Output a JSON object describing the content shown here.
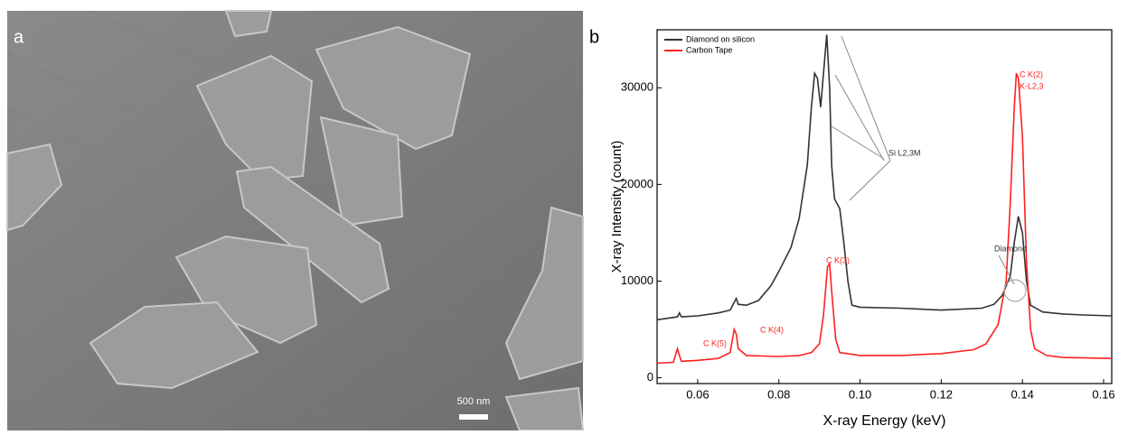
{
  "image": {
    "panel_label": "a",
    "scale_bar_label": "500 nm"
  },
  "chart_data": {
    "type": "line",
    "panel_label": "b",
    "x_label": "X-ray Energy (keV)",
    "y_label": "X-ray Intensity (count)",
    "xlim": [
      0.05,
      0.162
    ],
    "xticks": [
      0.06,
      0.08,
      {
        "value": 0.1,
        "label": "0.10"
      },
      0.12,
      0.14,
      0.16
    ],
    "ylim": [
      -600,
      36000
    ],
    "yticks": [
      0,
      10000,
      20000,
      30000
    ],
    "legend": "upper left",
    "series": [
      {
        "name": "Diamond on silicon",
        "color": "#333333",
        "x": [
          0.05,
          0.055,
          0.0555,
          0.056,
          0.06,
          0.065,
          0.068,
          0.069,
          0.0695,
          0.07,
          0.072,
          0.075,
          0.078,
          0.08,
          0.083,
          0.085,
          0.087,
          0.088,
          0.0888,
          0.0895,
          0.0903,
          0.0908,
          0.0918,
          0.0925,
          0.093,
          0.0937,
          0.095,
          0.096,
          0.097,
          0.098,
          0.1,
          0.11,
          0.12,
          0.13,
          0.133,
          0.135,
          0.137,
          0.138,
          0.139,
          0.14,
          0.141,
          0.142,
          0.145,
          0.15,
          0.155,
          0.162
        ],
        "values": [
          6000,
          6300,
          6700,
          6300,
          6400,
          6700,
          7000,
          7800,
          8200,
          7600,
          7500,
          8000,
          9500,
          11000,
          13500,
          16500,
          22000,
          28000,
          31500,
          31000,
          28000,
          30500,
          35500,
          30000,
          22000,
          18500,
          17500,
          14000,
          10000,
          7500,
          7300,
          7200,
          7000,
          7200,
          7600,
          8500,
          10500,
          14000,
          16700,
          15000,
          10000,
          7500,
          6800,
          6600,
          6500,
          6400
        ]
      },
      {
        "name": "Carbon Tape",
        "color": "#ff2020",
        "x": [
          0.05,
          0.054,
          0.055,
          0.0555,
          0.056,
          0.06,
          0.065,
          0.068,
          0.069,
          0.0695,
          0.07,
          0.072,
          0.08,
          0.085,
          0.088,
          0.09,
          0.091,
          0.092,
          0.0925,
          0.093,
          0.094,
          0.095,
          0.1,
          0.11,
          0.12,
          0.128,
          0.131,
          0.134,
          0.136,
          0.137,
          0.138,
          0.1385,
          0.139,
          0.14,
          0.141,
          0.142,
          0.143,
          0.146,
          0.15,
          0.162
        ],
        "values": [
          1500,
          1600,
          3000,
          2300,
          1700,
          1800,
          2000,
          2600,
          5000,
          4500,
          3000,
          2300,
          2200,
          2300,
          2600,
          3500,
          6500,
          11500,
          11800,
          9000,
          4000,
          2600,
          2300,
          2300,
          2500,
          2900,
          3500,
          5500,
          10000,
          18000,
          28000,
          31500,
          31000,
          25000,
          12000,
          5000,
          3000,
          2300,
          2100,
          2000
        ]
      }
    ],
    "annotations": [
      "Si L2,3M",
      "Diamond",
      "C K(2)",
      "K-L2,3",
      "C K(3)",
      "C K(4)",
      "C K(5)"
    ]
  }
}
